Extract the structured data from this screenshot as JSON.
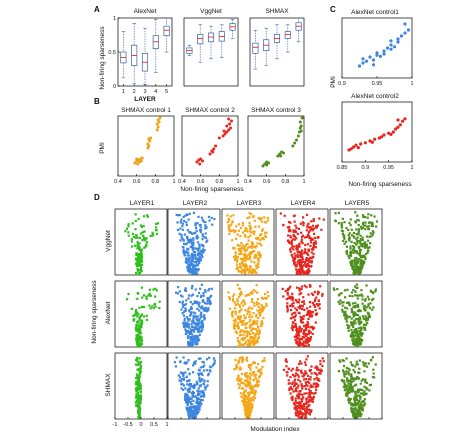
{
  "panel_letters": {
    "A": "A",
    "B": "B",
    "C": "C",
    "D": "D"
  },
  "chart_data": [
    {
      "id": "A",
      "type": "box",
      "shared_ylabel": "Non-firing sparseness",
      "shared_xlabel": "LAYER",
      "ylim": [
        0,
        1
      ],
      "yticks": [
        0,
        0.5,
        1
      ],
      "subplots": [
        {
          "title": "AlexNet",
          "xticks": [
            "1",
            "2",
            "3",
            "4",
            "5"
          ],
          "boxes": [
            {
              "q1": 0.34,
              "median": 0.42,
              "q3": 0.5,
              "wlo": 0.12,
              "whi": 0.8
            },
            {
              "q1": 0.3,
              "median": 0.45,
              "q3": 0.6,
              "wlo": 0.04,
              "whi": 0.92
            },
            {
              "q1": 0.22,
              "median": 0.35,
              "q3": 0.48,
              "wlo": 0.02,
              "whi": 0.85
            },
            {
              "q1": 0.55,
              "median": 0.65,
              "q3": 0.74,
              "wlo": 0.2,
              "whi": 0.98
            },
            {
              "q1": 0.74,
              "median": 0.82,
              "q3": 0.88,
              "wlo": 0.5,
              "whi": 1.0
            }
          ]
        },
        {
          "title": "VggNet",
          "xticks": [],
          "boxes": [
            {
              "q1": 0.48,
              "median": 0.52,
              "q3": 0.56,
              "wlo": 0.45,
              "whi": 0.6
            },
            {
              "q1": 0.62,
              "median": 0.7,
              "q3": 0.76,
              "wlo": 0.35,
              "whi": 0.9
            },
            {
              "q1": 0.65,
              "median": 0.72,
              "q3": 0.78,
              "wlo": 0.4,
              "whi": 0.88
            },
            {
              "q1": 0.66,
              "median": 0.73,
              "q3": 0.8,
              "wlo": 0.42,
              "whi": 0.9
            },
            {
              "q1": 0.82,
              "median": 0.87,
              "q3": 0.92,
              "wlo": 0.7,
              "whi": 0.98
            }
          ]
        },
        {
          "title": "SHMAX",
          "xticks": [],
          "boxes": [
            {
              "q1": 0.48,
              "median": 0.57,
              "q3": 0.63,
              "wlo": 0.25,
              "whi": 0.82
            },
            {
              "q1": 0.52,
              "median": 0.6,
              "q3": 0.68,
              "wlo": 0.3,
              "whi": 0.85
            },
            {
              "q1": 0.64,
              "median": 0.7,
              "q3": 0.76,
              "wlo": 0.4,
              "whi": 0.9
            },
            {
              "q1": 0.7,
              "median": 0.76,
              "q3": 0.8,
              "wlo": 0.5,
              "whi": 0.9
            },
            {
              "q1": 0.82,
              "median": 0.88,
              "q3": 0.93,
              "wlo": 0.65,
              "whi": 1.0
            }
          ]
        }
      ]
    },
    {
      "id": "B",
      "type": "scatter",
      "shared_ylabel": "PMI",
      "shared_xlabel": "Non-firing sparseness",
      "xlim": [
        0.4,
        1
      ],
      "xticks": [
        0.4,
        0.6,
        0.8,
        1
      ],
      "ylim": [
        0,
        0.6
      ],
      "subplots": [
        {
          "title": "SHMAX control 1",
          "color": "#f0a31a",
          "points": [
            [
              0.58,
              0.13
            ],
            [
              0.6,
              0.15
            ],
            [
              0.62,
              0.16
            ],
            [
              0.63,
              0.14
            ],
            [
              0.6,
              0.17
            ],
            [
              0.64,
              0.17
            ],
            [
              0.66,
              0.18
            ],
            [
              0.61,
              0.12
            ],
            [
              0.65,
              0.15
            ],
            [
              0.72,
              0.28
            ],
            [
              0.73,
              0.3
            ],
            [
              0.72,
              0.32
            ],
            [
              0.74,
              0.35
            ],
            [
              0.73,
              0.37
            ],
            [
              0.75,
              0.38
            ],
            [
              0.82,
              0.46
            ],
            [
              0.83,
              0.49
            ],
            [
              0.82,
              0.52
            ],
            [
              0.84,
              0.54
            ],
            [
              0.83,
              0.56
            ],
            [
              0.85,
              0.58
            ]
          ]
        },
        {
          "title": "SHMAX control 2",
          "color": "#e6261f",
          "points": [
            [
              0.56,
              0.14
            ],
            [
              0.58,
              0.16
            ],
            [
              0.6,
              0.17
            ],
            [
              0.62,
              0.15
            ],
            [
              0.59,
              0.12
            ],
            [
              0.7,
              0.22
            ],
            [
              0.72,
              0.25
            ],
            [
              0.74,
              0.27
            ],
            [
              0.76,
              0.3
            ],
            [
              0.73,
              0.24
            ],
            [
              0.8,
              0.38
            ],
            [
              0.84,
              0.4
            ],
            [
              0.86,
              0.42
            ],
            [
              0.88,
              0.44
            ],
            [
              0.85,
              0.45
            ],
            [
              0.9,
              0.46
            ],
            [
              0.92,
              0.48
            ],
            [
              0.88,
              0.5
            ],
            [
              0.91,
              0.52
            ],
            [
              0.93,
              0.55
            ],
            [
              0.9,
              0.57
            ]
          ]
        },
        {
          "title": "SHMAX control 3",
          "color": "#4f8f1e",
          "points": [
            [
              0.56,
              0.1
            ],
            [
              0.58,
              0.12
            ],
            [
              0.6,
              0.11
            ],
            [
              0.62,
              0.13
            ],
            [
              0.6,
              0.14
            ],
            [
              0.72,
              0.2
            ],
            [
              0.74,
              0.22
            ],
            [
              0.76,
              0.24
            ],
            [
              0.78,
              0.23
            ],
            [
              0.75,
              0.2
            ],
            [
              0.88,
              0.3
            ],
            [
              0.9,
              0.33
            ],
            [
              0.92,
              0.36
            ],
            [
              0.94,
              0.4
            ],
            [
              0.95,
              0.44
            ],
            [
              0.96,
              0.48
            ],
            [
              0.97,
              0.5
            ],
            [
              0.96,
              0.54
            ],
            [
              0.98,
              0.58
            ],
            [
              0.97,
              0.45
            ]
          ]
        }
      ]
    },
    {
      "id": "C",
      "type": "scatter",
      "shared_ylabel": "PMI",
      "shared_xlabel": "Non-firing sparseness",
      "subplots": [
        {
          "title": "AlexNet control1",
          "color": "#3d86e0",
          "xlim": [
            0.9,
            1
          ],
          "xticks": [
            0.9,
            0.95,
            1
          ],
          "ylim": [
            0,
            1
          ],
          "points": [
            [
              0.925,
              0.2
            ],
            [
              0.93,
              0.25
            ],
            [
              0.935,
              0.28
            ],
            [
              0.94,
              0.35
            ],
            [
              0.945,
              0.3
            ],
            [
              0.95,
              0.38
            ],
            [
              0.95,
              0.42
            ],
            [
              0.955,
              0.36
            ],
            [
              0.96,
              0.45
            ],
            [
              0.96,
              0.4
            ],
            [
              0.965,
              0.5
            ],
            [
              0.97,
              0.48
            ],
            [
              0.97,
              0.55
            ],
            [
              0.975,
              0.52
            ],
            [
              0.98,
              0.6
            ],
            [
              0.98,
              0.65
            ],
            [
              0.985,
              0.7
            ],
            [
              0.99,
              0.75
            ],
            [
              0.99,
              0.9
            ],
            [
              0.995,
              0.8
            ],
            [
              0.93,
              0.32
            ],
            [
              0.945,
              0.22
            ],
            [
              0.97,
              0.62
            ]
          ]
        },
        {
          "title": "AlexNet control2",
          "color": "#e6261f",
          "xlim": [
            0.85,
            1
          ],
          "xticks": [
            0.85,
            0.9,
            0.95,
            1
          ],
          "ylim": [
            0,
            1
          ],
          "points": [
            [
              0.865,
              0.2
            ],
            [
              0.87,
              0.22
            ],
            [
              0.875,
              0.25
            ],
            [
              0.88,
              0.28
            ],
            [
              0.885,
              0.24
            ],
            [
              0.89,
              0.3
            ],
            [
              0.9,
              0.32
            ],
            [
              0.91,
              0.35
            ],
            [
              0.915,
              0.33
            ],
            [
              0.92,
              0.38
            ],
            [
              0.93,
              0.4
            ],
            [
              0.935,
              0.42
            ],
            [
              0.94,
              0.45
            ],
            [
              0.95,
              0.48
            ],
            [
              0.955,
              0.46
            ],
            [
              0.96,
              0.5
            ],
            [
              0.965,
              0.55
            ],
            [
              0.97,
              0.58
            ],
            [
              0.975,
              0.62
            ],
            [
              0.98,
              0.68
            ],
            [
              0.985,
              0.72
            ],
            [
              0.97,
              0.7
            ]
          ]
        }
      ]
    },
    {
      "id": "D",
      "type": "density_scatter",
      "row_labels": [
        "VggNet",
        "AlexNet",
        "SHMAX"
      ],
      "col_titles": [
        "LAYER1",
        "LAYER2",
        "LAYER3",
        "LAYER4",
        "LAYER5"
      ],
      "col_colors": [
        "#2fbf1d",
        "#3d86e0",
        "#f5a616",
        "#e6261f",
        "#4f8f1e"
      ],
      "shared_ylabel": "Non-firing sparseness",
      "shared_xlabel": "Modulation index",
      "xlim": [
        -1,
        1
      ],
      "xticks": [
        -1,
        -0.5,
        0,
        0.5,
        1
      ],
      "xtick_labels": [
        "-1",
        "-0.5",
        "0",
        "0.5",
        "1"
      ]
    }
  ]
}
